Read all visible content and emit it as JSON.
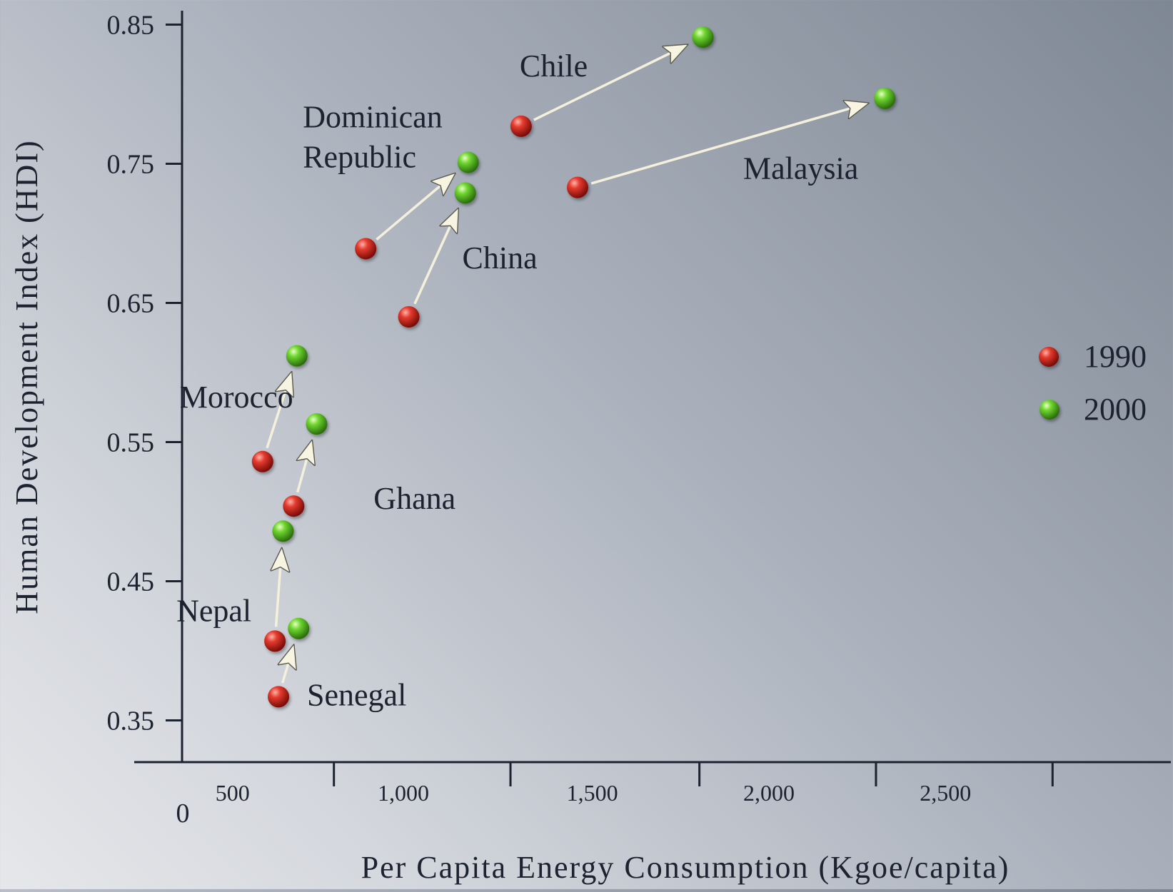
{
  "chart_data": {
    "type": "scatter",
    "xlabel": "Per Capita Energy Consumption (Kgoe/capita)",
    "ylabel": "Human Development Index (HDI)",
    "xlim": [
      0,
      2800
    ],
    "ylim": [
      0.32,
      0.86
    ],
    "x_origin_label": "0",
    "xticks": [
      {
        "value": 430,
        "label": "500"
      },
      {
        "value": 930,
        "label": "1,000"
      },
      {
        "value": 1465,
        "label": "1,500"
      },
      {
        "value": 1965,
        "label": "2,000"
      },
      {
        "value": 2465,
        "label": "2,500"
      }
    ],
    "yticks": [
      {
        "value": 0.35,
        "label": "0.35"
      },
      {
        "value": 0.45,
        "label": "0.45"
      },
      {
        "value": 0.55,
        "label": "0.55"
      },
      {
        "value": 0.65,
        "label": "0.65"
      },
      {
        "value": 0.75,
        "label": "0.75"
      },
      {
        "value": 0.85,
        "label": "0.85"
      }
    ],
    "series": [
      {
        "name": "1990",
        "color": "#d42020"
      },
      {
        "name": "2000",
        "color": "#5cc92a"
      }
    ],
    "countries": [
      {
        "name": "Chile",
        "x1990": 960,
        "y1990": 0.777,
        "x2000": 1475,
        "y2000": 0.841
      },
      {
        "name": "Malaysia",
        "x1990": 1120,
        "y1990": 0.733,
        "x2000": 1990,
        "y2000": 0.797
      },
      {
        "name": "Dominican\nRepublic",
        "x1990": 520,
        "y1990": 0.689,
        "x2000": 810,
        "y2000": 0.751
      },
      {
        "name": "China",
        "x1990": 642,
        "y1990": 0.64,
        "x2000": 802,
        "y2000": 0.729
      },
      {
        "name": "Morocco",
        "x1990": 228,
        "y1990": 0.536,
        "x2000": 325,
        "y2000": 0.612
      },
      {
        "name": "Ghana",
        "x1990": 316,
        "y1990": 0.504,
        "x2000": 381,
        "y2000": 0.563
      },
      {
        "name": "Nepal",
        "x1990": 263,
        "y1990": 0.407,
        "x2000": 286,
        "y2000": 0.486
      },
      {
        "name": "Senegal",
        "x1990": 273,
        "y1990": 0.367,
        "x2000": 330,
        "y2000": 0.416
      }
    ],
    "legend_position": "right",
    "grid": false
  }
}
